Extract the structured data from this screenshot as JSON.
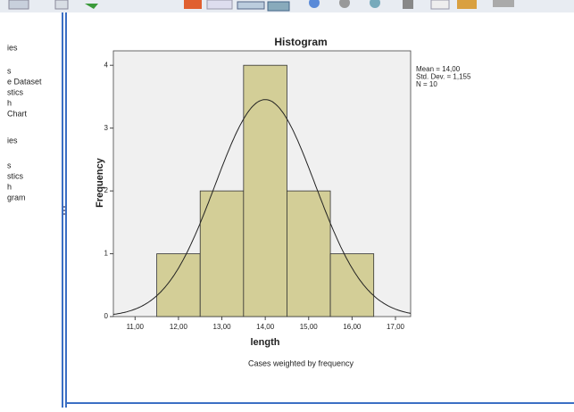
{
  "nav": {
    "items": [
      "ies",
      "s",
      "e Dataset",
      "stics",
      "h",
      "Chart",
      "ies",
      "s",
      "stics",
      "h",
      "gram"
    ]
  },
  "chart_data": {
    "type": "histogram",
    "title": "Histogram",
    "xlabel": "length",
    "ylabel": "Frequency",
    "bins": [
      11.5,
      12.5,
      13.5,
      14.5,
      15.5,
      16.5
    ],
    "values": [
      1,
      2,
      4,
      2,
      1
    ],
    "color": "#d3ce97",
    "xlim": [
      10.5,
      17.35
    ],
    "ylim": [
      0,
      4.23
    ],
    "xticks": [
      {
        "value": 11,
        "label": "11,00"
      },
      {
        "value": 12,
        "label": "12,00"
      },
      {
        "value": 13,
        "label": "13,00"
      },
      {
        "value": 14,
        "label": "14,00"
      },
      {
        "value": 15,
        "label": "15,00"
      },
      {
        "value": 16,
        "label": "16,00"
      },
      {
        "value": 17,
        "label": "17,00"
      }
    ],
    "yticks": [
      0,
      1,
      2,
      3,
      4
    ],
    "stats": [
      {
        "value": 14,
        "label": "Mean = 14,00"
      },
      {
        "value": 1.155,
        "label": "Std. Dev. = 1,155"
      },
      {
        "value": 10,
        "label": "N = 10"
      }
    ],
    "footnote": "Cases weighted by frequency"
  }
}
